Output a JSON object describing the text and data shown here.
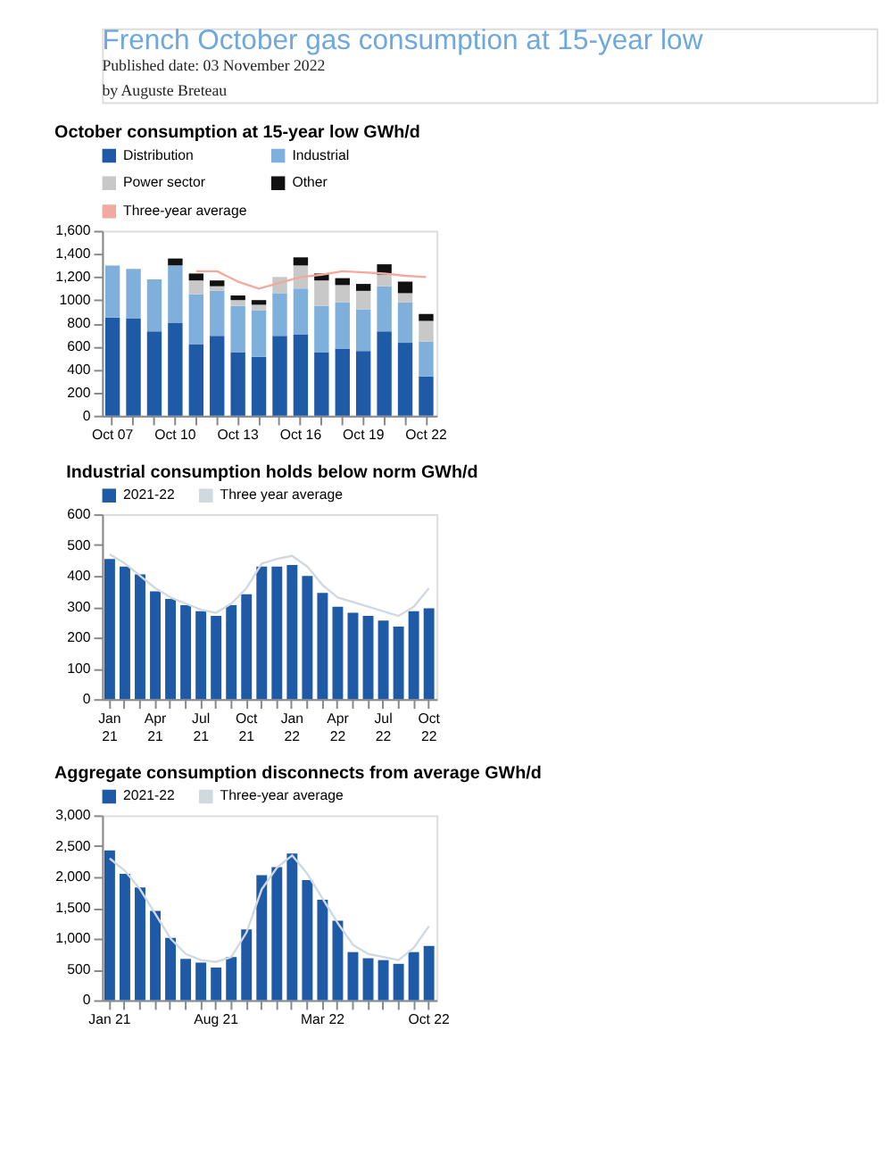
{
  "chart_data": [
    {
      "type": "bar",
      "title": "October consumption at 15-year low GWh/d",
      "annotations": [
        "French October gas consumption at 15-year low",
        "Published date: 03 November 2022",
        "by Auguste Breteau"
      ],
      "categories": [
        "Oct 07",
        null,
        null,
        "Oct 10",
        null,
        null,
        "Oct 13",
        null,
        null,
        "Oct 16",
        null,
        null,
        "Oct 19",
        null,
        null,
        "Oct 22"
      ],
      "stacked": true,
      "legend": "top",
      "series": [
        {
          "name": "Distribution",
          "color": "#1f5aa6",
          "values": [
            850,
            840,
            730,
            800,
            620,
            690,
            550,
            510,
            690,
            700,
            550,
            580,
            560,
            730,
            630,
            340
          ]
        },
        {
          "name": "Industrial",
          "color": "#7fb0dc",
          "values": [
            450,
            430,
            450,
            500,
            430,
            390,
            400,
            400,
            370,
            400,
            400,
            400,
            360,
            390,
            350,
            300
          ]
        },
        {
          "name": "Power sector",
          "color": "#c8c8c8",
          "values": [
            null,
            null,
            null,
            null,
            120,
            40,
            50,
            50,
            140,
            200,
            220,
            150,
            160,
            100,
            80,
            180
          ]
        },
        {
          "name": "Other",
          "color": "#111111",
          "values": [
            null,
            null,
            null,
            60,
            60,
            50,
            40,
            40,
            null,
            70,
            60,
            60,
            60,
            90,
            100,
            60
          ]
        },
        {
          "name": "Three-year average",
          "type": "line",
          "color": "#f2aaa0",
          "values": [
            null,
            null,
            null,
            null,
            1250,
            1250,
            1160,
            1100,
            1150,
            1200,
            1220,
            1250,
            1240,
            1230,
            1210,
            1200
          ]
        }
      ],
      "ylim": [
        0,
        1600
      ],
      "yticks": [
        0,
        200,
        400,
        600,
        800,
        1000,
        {
          "value": 1200,
          "label": "1,200"
        },
        {
          "value": 1400,
          "label": "1,400"
        },
        {
          "value": 1600,
          "label": "1,600"
        }
      ]
    },
    {
      "type": "bar",
      "title": "Industrial consumption holds below norm GWh/d",
      "categories": [
        "Jan 21",
        null,
        null,
        "Apr 21",
        null,
        null,
        "Jul 21",
        null,
        null,
        "Oct 21",
        null,
        null,
        "Jan 22",
        null,
        null,
        "Apr 22",
        null,
        null,
        "Jul 22",
        null,
        null,
        "Oct 22"
      ],
      "legend": "top",
      "series": [
        {
          "name": "2021-22",
          "color": "#1f5aa6",
          "values": [
            455,
            430,
            405,
            350,
            325,
            305,
            285,
            270,
            305,
            340,
            430,
            430,
            435,
            400,
            345,
            300,
            280,
            270,
            255,
            235,
            285,
            295
          ]
        },
        {
          "name": "Three year average",
          "type": "line",
          "color": "#d0d8e0",
          "values": [
            470,
            440,
            400,
            360,
            330,
            310,
            290,
            280,
            310,
            360,
            440,
            455,
            465,
            430,
            370,
            330,
            315,
            300,
            285,
            270,
            300,
            360
          ]
        }
      ],
      "ylim": [
        0,
        600
      ],
      "yticks": [
        0,
        100,
        200,
        300,
        400,
        500,
        600
      ]
    },
    {
      "type": "bar",
      "title": "Aggregate consumption disconnects from average GWh/d",
      "categories": [
        "Jan 21",
        null,
        null,
        null,
        null,
        null,
        null,
        "Aug 21",
        null,
        null,
        null,
        null,
        null,
        null,
        "Mar 22",
        null,
        null,
        null,
        null,
        null,
        null,
        "Oct 22"
      ],
      "legend": "top",
      "series": [
        {
          "name": "2021-22",
          "color": "#1f5aa6",
          "values": [
            2430,
            2050,
            1830,
            1450,
            1010,
            670,
            610,
            530,
            700,
            1150,
            2030,
            2160,
            2380,
            1950,
            1630,
            1290,
            780,
            680,
            650,
            590,
            780,
            880
          ]
        },
        {
          "name": "Three-year average",
          "type": "line",
          "color": "#d0d8e0",
          "values": [
            2300,
            2100,
            1800,
            1400,
            1000,
            750,
            650,
            620,
            700,
            1100,
            1800,
            2150,
            2350,
            2050,
            1650,
            1250,
            900,
            750,
            700,
            650,
            850,
            1200
          ]
        }
      ],
      "ylim": [
        0,
        3000
      ],
      "yticks": [
        0,
        500,
        {
          "value": 1000,
          "label": "1,000"
        },
        {
          "value": 1500,
          "label": "1,500"
        },
        {
          "value": 2000,
          "label": "2,000"
        },
        {
          "value": 2500,
          "label": "2,500"
        },
        {
          "value": 3000,
          "label": "3,000"
        }
      ]
    }
  ]
}
